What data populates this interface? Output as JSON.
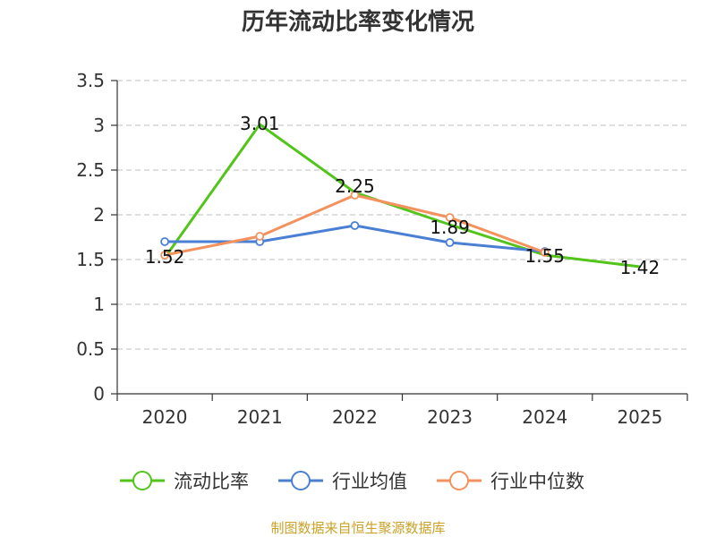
{
  "chart_data": {
    "type": "line",
    "title": "历年流动比率变化情况",
    "categories": [
      "2020",
      "2021",
      "2022",
      "2023",
      "2024",
      "2025"
    ],
    "ylim": [
      0,
      3.5
    ],
    "yticks": [
      "0",
      "0.5",
      "1",
      "1.5",
      "2",
      "2.5",
      "3",
      "3.5"
    ],
    "grid": true,
    "legend_position": "bottom",
    "series": [
      {
        "name": "流动比率",
        "color": "#52c41a",
        "values": [
          1.52,
          3.01,
          2.25,
          1.89,
          1.55,
          1.42
        ],
        "labels": [
          "1.52",
          "3.01",
          "2.25",
          "1.89",
          "1.55",
          "1.42"
        ],
        "show_markers": false
      },
      {
        "name": "行业均值",
        "color": "#4a7fd4",
        "values": [
          1.7,
          1.7,
          1.88,
          1.69,
          1.59,
          null
        ],
        "show_markers": true
      },
      {
        "name": "行业中位数",
        "color": "#f4925f",
        "values": [
          1.55,
          1.76,
          2.22,
          1.97,
          1.58,
          null
        ],
        "show_markers": true
      }
    ],
    "source": "制图数据来自恒生聚源数据库"
  }
}
